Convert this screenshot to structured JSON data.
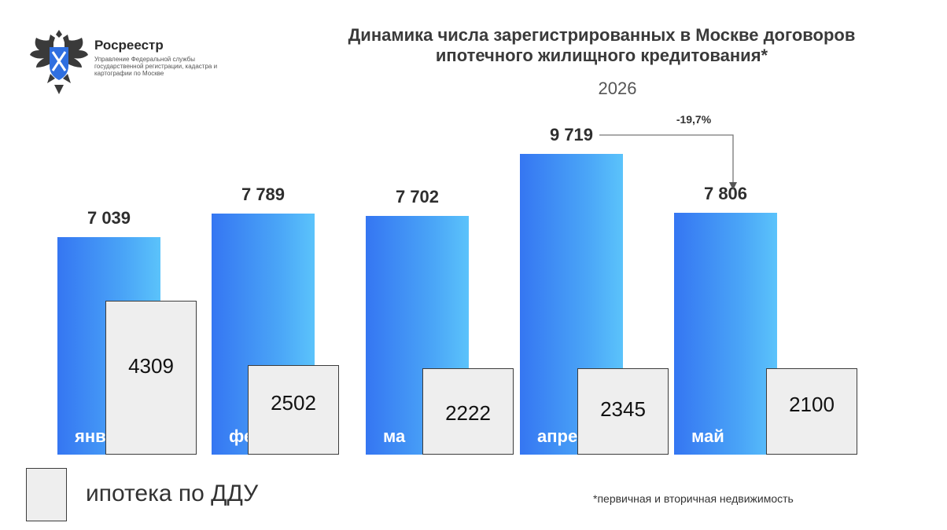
{
  "header": {
    "org_name": "Росреестр",
    "org_subtitle": "Управление Федеральной службы государственной регистрации, кадастра и картографии по Москве"
  },
  "chart_data": {
    "type": "bar",
    "title": "Динамика числа зарегистрированных в Москве договоров ипотечного жилищного кредитования*",
    "subtitle": "2026",
    "categories": [
      "январь",
      "февраль",
      "март",
      "апрель",
      "май"
    ],
    "visible_category_labels": [
      "янв",
      "фе",
      "ма",
      "апре",
      "май"
    ],
    "value_labels": [
      "7 039",
      "7 789",
      "7 702",
      "9 719",
      "7 806"
    ],
    "series": [
      {
        "values": [
          7039,
          7789,
          7702,
          9719,
          7806
        ],
        "color": "#3d8cf5"
      },
      {
        "name": "ипотека по ДДУ",
        "values": [
          4309,
          2502,
          2222,
          2345,
          2100
        ],
        "color": "#eeeeee"
      }
    ],
    "annotation": {
      "text": "-19,7%",
      "from": "апрель",
      "to": "май"
    },
    "footnote": "*первичная и вторичная недвижимость",
    "legend_position": "bottom-left"
  }
}
